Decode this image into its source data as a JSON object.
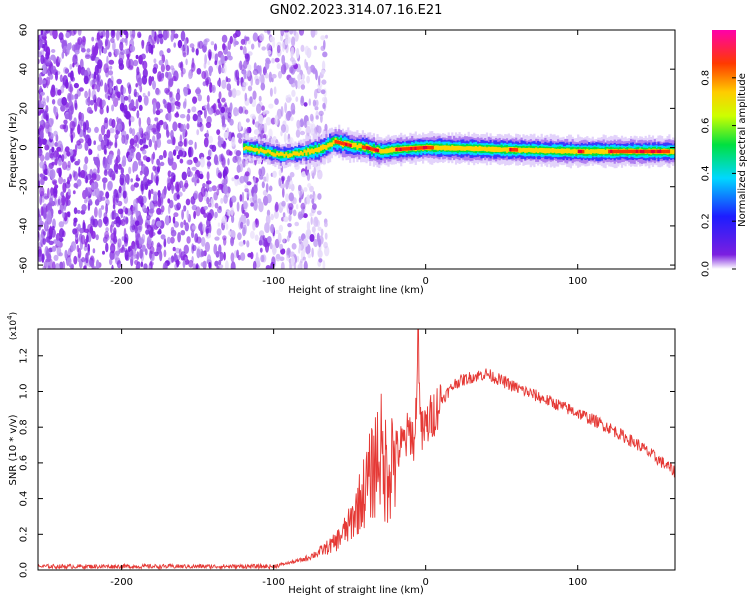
{
  "figure": {
    "title": "GN02.2023.314.07.16.E21"
  },
  "colors": {
    "line": "#e53935",
    "frame": "#000000"
  },
  "chart_data": [
    {
      "type": "heatmap",
      "xlabel": "Height of straight line (km)",
      "ylabel": "Frequency (Hz)",
      "xlim": [
        -255,
        164
      ],
      "ylim": [
        -62,
        60
      ],
      "xticks": [
        -200,
        -100,
        0,
        100
      ],
      "yticks": [
        -60,
        -40,
        -20,
        0,
        20,
        40,
        60
      ],
      "colorbar": {
        "label": "Normalized spectral amplitude",
        "range": [
          0,
          1
        ],
        "ticks": [
          "0.0",
          "0.2",
          "0.4",
          "0.6",
          "0.8"
        ],
        "colormap": "rainbow (violet → blue → cyan → green → yellow → orange → red → magenta)"
      },
      "ridge": {
        "description": "High-amplitude band near 0 Hz from about -120 km to the right edge",
        "x": [
          -120,
          -105,
          -95,
          -85,
          -70,
          -60,
          -50,
          -40,
          -30,
          -20,
          0,
          50,
          100,
          164
        ],
        "center_freq": [
          0,
          -2,
          -4,
          -3,
          -1,
          3,
          1,
          0,
          -2,
          -1,
          0,
          -1,
          -2,
          -2
        ]
      },
      "noise_region": {
        "x_range": [
          -255,
          -90
        ],
        "description": "scattered low amplitude (violet) noise across all frequencies"
      }
    },
    {
      "type": "line",
      "xlabel": "Height of straight line (km)",
      "ylabel": "SNR (10 * v/v)",
      "multiplier": "(x10",
      "multiplier_exp": "4",
      "multiplier_close": ")",
      "xlim": [
        -255,
        164
      ],
      "ylim": [
        0,
        1.35
      ],
      "xticks": [
        -200,
        -100,
        0,
        100
      ],
      "yticks": [
        "0.0",
        "0.2",
        "0.4",
        "0.6",
        "0.8",
        "1.0",
        "1.2"
      ],
      "series": [
        {
          "x": [
            -255,
            -150,
            -100,
            -90,
            -80,
            -70,
            -60,
            -50,
            -45,
            -40,
            -35,
            -30,
            -28,
            -25,
            -20,
            -15,
            -10,
            -7,
            -5,
            -3,
            0,
            10,
            20,
            30,
            40,
            50,
            60,
            80,
            100,
            120,
            140,
            164
          ],
          "values": [
            0.02,
            0.02,
            0.02,
            0.04,
            0.06,
            0.1,
            0.15,
            0.25,
            0.35,
            0.45,
            0.55,
            0.7,
            0.55,
            0.6,
            0.65,
            0.7,
            0.78,
            0.7,
            1.35,
            0.75,
            0.8,
            0.95,
            1.05,
            1.08,
            1.1,
            1.06,
            1.02,
            0.95,
            0.88,
            0.8,
            0.7,
            0.55
          ]
        }
      ]
    }
  ]
}
